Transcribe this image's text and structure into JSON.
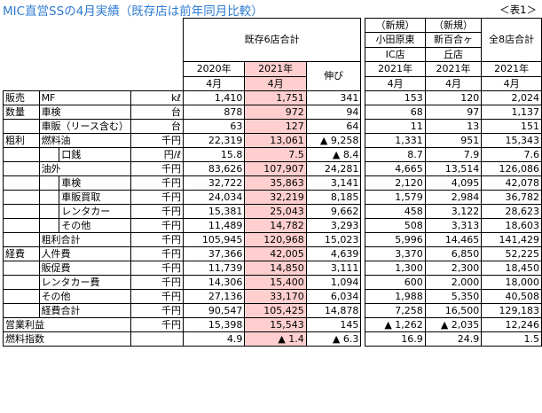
{
  "title": "MIC直営SSの4月実績（既存店は前年同月比較）",
  "table_no": "＜表1＞",
  "headers": {
    "existing_total": "既存6店合計",
    "new_odawara": [
      "（新規）",
      "小田原東",
      "IC店"
    ],
    "new_shinyuri": [
      "（新規）",
      "新百合ヶ",
      "丘店"
    ],
    "all8": "全8店合計",
    "year2020": "2020年",
    "year2021": "2021年",
    "month": "4月",
    "growth": "伸び"
  },
  "rows": [
    {
      "grp": "販売",
      "l1": "MF",
      "l2": "",
      "unit": "kℓ",
      "v": [
        "1,410",
        "1,751",
        "341",
        "153",
        "120",
        "2,024"
      ]
    },
    {
      "grp": "数量",
      "l1": "車検",
      "l2": "",
      "unit": "台",
      "v": [
        "878",
        "972",
        "94",
        "68",
        "97",
        "1,137"
      ]
    },
    {
      "grp": "",
      "l1": "車販（リース含む）",
      "l2": "",
      "unit": "台",
      "v": [
        "63",
        "127",
        "64",
        "11",
        "13",
        "151"
      ]
    },
    {
      "grp": "粗利",
      "l1": "燃料油",
      "l2": "",
      "unit": "千円",
      "v": [
        "22,319",
        "13,061",
        "▲ 9,258",
        "1,331",
        "951",
        "15,343"
      ]
    },
    {
      "grp": "",
      "l1": "",
      "l2": "口銭",
      "unit": "円/ℓ",
      "v": [
        "15.8",
        "7.5",
        "▲ 8.4",
        "8.7",
        "7.9",
        "7.6"
      ]
    },
    {
      "grp": "",
      "l1": "油外",
      "l2": "",
      "unit": "千円",
      "v": [
        "83,626",
        "107,907",
        "24,281",
        "4,665",
        "13,514",
        "126,086"
      ]
    },
    {
      "grp": "",
      "l1": "",
      "l2": "車検",
      "unit": "千円",
      "v": [
        "32,722",
        "35,863",
        "3,141",
        "2,120",
        "4,095",
        "42,078"
      ]
    },
    {
      "grp": "",
      "l1": "",
      "l2": "車販買取",
      "unit": "千円",
      "v": [
        "24,034",
        "32,219",
        "8,185",
        "1,579",
        "2,984",
        "36,782"
      ]
    },
    {
      "grp": "",
      "l1": "",
      "l2": "レンタカー",
      "unit": "千円",
      "v": [
        "15,381",
        "25,043",
        "9,662",
        "458",
        "3,122",
        "28,623"
      ]
    },
    {
      "grp": "",
      "l1": "",
      "l2": "その他",
      "unit": "千円",
      "v": [
        "11,489",
        "14,782",
        "3,293",
        "508",
        "3,313",
        "18,603"
      ]
    },
    {
      "grp": "",
      "l1": "粗利合計",
      "l2": "",
      "unit": "千円",
      "v": [
        "105,945",
        "120,968",
        "15,023",
        "5,996",
        "14,465",
        "141,429"
      ]
    },
    {
      "grp": "経費",
      "l1": "人件費",
      "l2": "",
      "unit": "千円",
      "v": [
        "37,366",
        "42,005",
        "4,639",
        "3,370",
        "6,850",
        "52,225"
      ]
    },
    {
      "grp": "",
      "l1": "販促費",
      "l2": "",
      "unit": "千円",
      "v": [
        "11,739",
        "14,850",
        "3,111",
        "1,300",
        "2,300",
        "18,450"
      ]
    },
    {
      "grp": "",
      "l1": "レンタカー費",
      "l2": "",
      "unit": "千円",
      "v": [
        "14,306",
        "15,400",
        "1,094",
        "600",
        "2,000",
        "18,000"
      ]
    },
    {
      "grp": "",
      "l1": "その他",
      "l2": "",
      "unit": "千円",
      "v": [
        "27,136",
        "33,170",
        "6,034",
        "1,988",
        "5,350",
        "40,508"
      ]
    },
    {
      "grp": "",
      "l1": "経費合計",
      "l2": "",
      "unit": "千円",
      "v": [
        "90,547",
        "105,425",
        "14,878",
        "7,258",
        "16,500",
        "129,183"
      ]
    },
    {
      "grp": "営業利益",
      "l1": "",
      "l2": "",
      "unit": "千円",
      "v": [
        "15,398",
        "15,543",
        "145",
        "▲ 1,262",
        "▲ 2,035",
        "12,246"
      ]
    },
    {
      "grp": "燃料指数",
      "l1": "",
      "l2": "",
      "unit": "",
      "v": [
        "4.9",
        "▲ 1.4",
        "▲ 6.3",
        "16.9",
        "24.9",
        "1.5"
      ]
    }
  ]
}
